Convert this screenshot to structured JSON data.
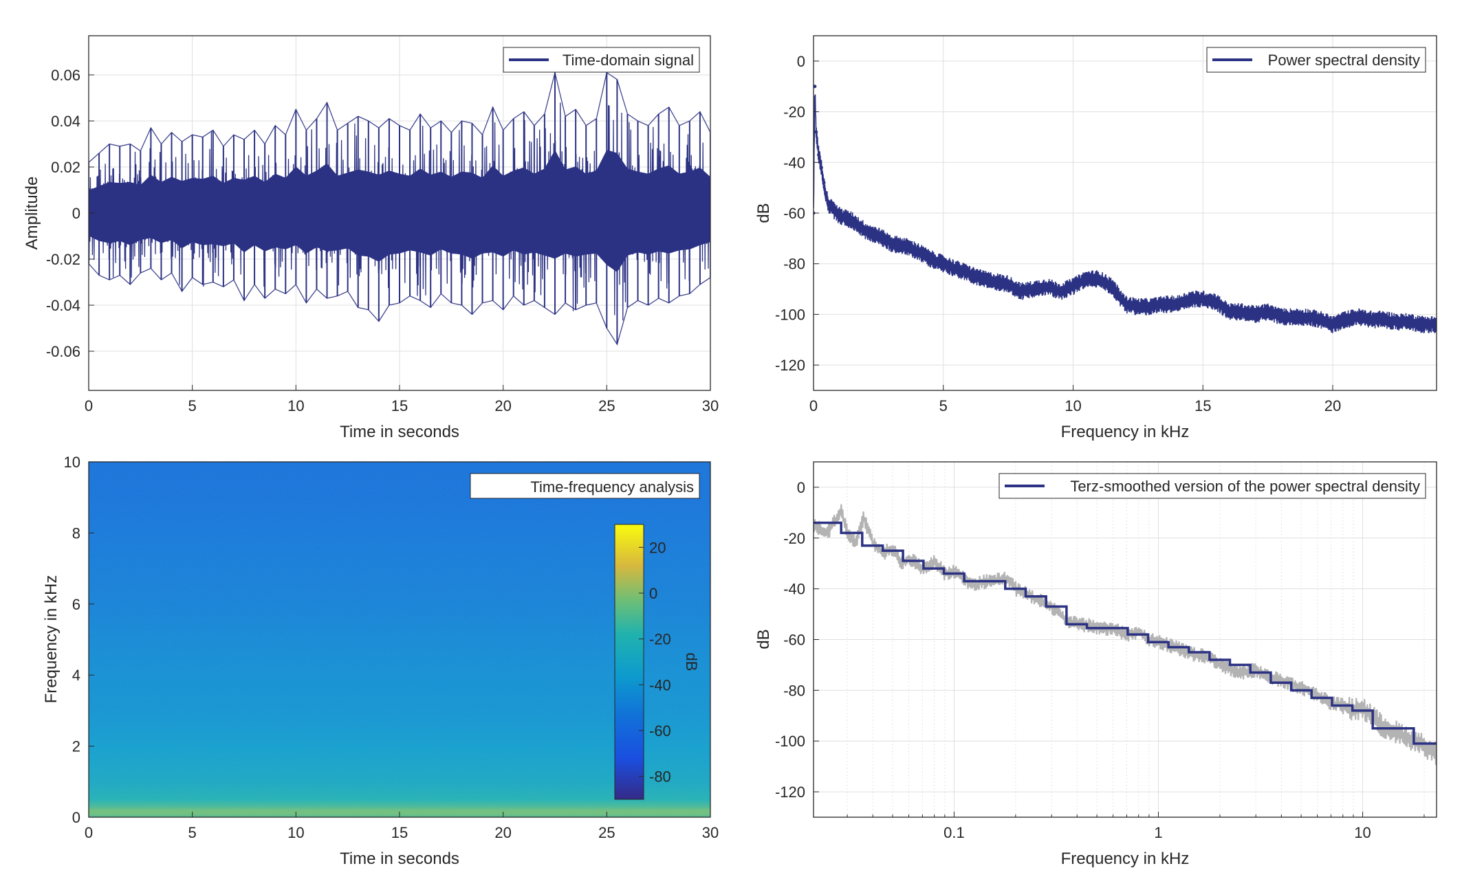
{
  "chart_data": [
    {
      "id": "time",
      "type": "line",
      "xlabel": "Time in seconds",
      "ylabel": "Amplitude",
      "xlim": [
        0,
        30
      ],
      "ylim": [
        -0.077,
        0.077
      ],
      "xticks": [
        0,
        5,
        10,
        15,
        20,
        25,
        30
      ],
      "yticks": [
        -0.06,
        -0.04,
        -0.02,
        0,
        0.02,
        0.04,
        0.06
      ],
      "ytick_labels": [
        "-0.06",
        "-0.04",
        "-0.02",
        "0",
        "0.02",
        "0.04",
        "0.06"
      ],
      "grid": true,
      "legend_position": "top-right",
      "series": [
        {
          "name": "Time-domain signal",
          "color": "#2c3283",
          "x": [
            0,
            0.5,
            1,
            1.5,
            2,
            2.5,
            3,
            3.5,
            4,
            4.5,
            5,
            5.5,
            6,
            6.5,
            7,
            7.5,
            8,
            8.5,
            9,
            9.5,
            10,
            10.5,
            11,
            11.5,
            12,
            12.5,
            13,
            13.5,
            14,
            14.5,
            15,
            15.5,
            16,
            16.5,
            17,
            17.5,
            18,
            18.5,
            19,
            19.5,
            20,
            20.5,
            21,
            21.5,
            22,
            22.5,
            23,
            23.5,
            24,
            24.5,
            25,
            25.5,
            26,
            26.5,
            27,
            27.5,
            28,
            28.5,
            29,
            29.5,
            30
          ],
          "max": [
            0.022,
            0.026,
            0.03,
            0.029,
            0.03,
            0.027,
            0.037,
            0.03,
            0.035,
            0.031,
            0.034,
            0.033,
            0.036,
            0.029,
            0.034,
            0.032,
            0.036,
            0.03,
            0.038,
            0.034,
            0.045,
            0.036,
            0.041,
            0.048,
            0.036,
            0.039,
            0.042,
            0.04,
            0.037,
            0.041,
            0.038,
            0.036,
            0.043,
            0.037,
            0.04,
            0.035,
            0.04,
            0.039,
            0.034,
            0.046,
            0.036,
            0.041,
            0.044,
            0.038,
            0.043,
            0.061,
            0.042,
            0.045,
            0.038,
            0.041,
            0.061,
            0.058,
            0.043,
            0.04,
            0.038,
            0.043,
            0.046,
            0.038,
            0.04,
            0.044,
            0.035
          ],
          "min": [
            -0.022,
            -0.027,
            -0.029,
            -0.027,
            -0.031,
            -0.026,
            -0.024,
            -0.029,
            -0.026,
            -0.034,
            -0.028,
            -0.031,
            -0.03,
            -0.032,
            -0.029,
            -0.038,
            -0.031,
            -0.037,
            -0.033,
            -0.035,
            -0.031,
            -0.039,
            -0.033,
            -0.037,
            -0.036,
            -0.034,
            -0.041,
            -0.042,
            -0.047,
            -0.04,
            -0.039,
            -0.036,
            -0.038,
            -0.041,
            -0.035,
            -0.039,
            -0.04,
            -0.044,
            -0.039,
            -0.038,
            -0.042,
            -0.036,
            -0.04,
            -0.038,
            -0.041,
            -0.044,
            -0.039,
            -0.042,
            -0.04,
            -0.039,
            -0.05,
            -0.057,
            -0.041,
            -0.038,
            -0.04,
            -0.037,
            -0.039,
            -0.036,
            -0.035,
            -0.031,
            -0.028
          ]
        }
      ]
    },
    {
      "id": "psd",
      "type": "line",
      "xlabel": "Frequency in kHz",
      "ylabel": "dB",
      "xlim": [
        0,
        24
      ],
      "ylim": [
        -130,
        10
      ],
      "xticks": [
        0,
        5,
        10,
        15,
        20
      ],
      "yticks": [
        -120,
        -100,
        -80,
        -60,
        -40,
        -20,
        0
      ],
      "grid": true,
      "legend_position": "top-right",
      "series": [
        {
          "name": "Power spectral density",
          "color": "#2c3283",
          "x": [
            0,
            0.05,
            0.1,
            0.2,
            0.3,
            0.4,
            0.5,
            0.6,
            0.7,
            0.8,
            1,
            1.5,
            2,
            2.5,
            3,
            3.5,
            4,
            4.5,
            5,
            5.5,
            6,
            6.5,
            7,
            7.5,
            8,
            8.5,
            9,
            9.5,
            10,
            10.5,
            11,
            11.5,
            12,
            12.5,
            13,
            13.5,
            14,
            14.5,
            15,
            15.5,
            16,
            16.5,
            17,
            17.5,
            18,
            18.5,
            19,
            19.5,
            20,
            20.5,
            21,
            21.5,
            22,
            22.5,
            23,
            23.5,
            24
          ],
          "y": [
            -60,
            -10,
            -28,
            -37,
            -42,
            -48,
            -54,
            -57,
            -58,
            -59,
            -61,
            -63,
            -67,
            -69,
            -72,
            -73,
            -75,
            -78,
            -80,
            -82,
            -84,
            -86,
            -87,
            -88,
            -91,
            -90,
            -89,
            -91,
            -89,
            -86,
            -86,
            -89,
            -96,
            -97,
            -97,
            -96,
            -96,
            -94,
            -94,
            -95,
            -99,
            -99,
            -100,
            -99,
            -101,
            -101,
            -101,
            -102,
            -104,
            -102,
            -101,
            -102,
            -102,
            -103,
            -103,
            -104,
            -104
          ],
          "spread": 3.5
        }
      ]
    },
    {
      "id": "spectrogram",
      "type": "heatmap",
      "xlabel": "Time in seconds",
      "ylabel": "Frequency in kHz",
      "xlim": [
        0,
        30
      ],
      "ylim": [
        0,
        10
      ],
      "xticks": [
        0,
        5,
        10,
        15,
        20,
        25,
        30
      ],
      "yticks": [
        0,
        2,
        4,
        6,
        8,
        10
      ],
      "legend": "Time-frequency analysis",
      "legend_position": "top-right",
      "colormap": "parula",
      "colorbar": {
        "label": "dB",
        "range": [
          -90,
          30
        ],
        "ticks": [
          -80,
          -60,
          -40,
          -20,
          0,
          20
        ]
      },
      "freq_profile_khz": [
        0,
        0.1,
        0.2,
        0.3,
        0.5,
        0.8,
        1,
        1.5,
        2,
        3,
        4,
        5,
        6,
        7,
        8,
        9,
        10
      ],
      "freq_profile_db": [
        -10,
        -3,
        -4,
        -11,
        -20,
        -25,
        -28,
        -32,
        -35,
        -40,
        -42,
        -45,
        -48,
        -50,
        -52,
        -54,
        -55
      ]
    },
    {
      "id": "terz",
      "type": "line",
      "xlabel": "Frequency in kHz",
      "ylabel": "dB",
      "xscale": "log",
      "xlim": [
        0.0205,
        23
      ],
      "ylim": [
        -130,
        10
      ],
      "xticks": [
        0.1,
        1,
        10
      ],
      "xtick_labels": [
        "0.1",
        "1",
        "10"
      ],
      "yticks": [
        -120,
        -100,
        -80,
        -60,
        -40,
        -20,
        0
      ],
      "grid": true,
      "legend_position": "top-right",
      "series": [
        {
          "name": "",
          "color": "#b3b3b3",
          "x": [
            0.0205,
            0.024,
            0.028,
            0.03,
            0.033,
            0.036,
            0.04,
            0.045,
            0.05,
            0.055,
            0.06,
            0.07,
            0.08,
            0.09,
            0.1,
            0.12,
            0.15,
            0.18,
            0.2,
            0.25,
            0.3,
            0.35,
            0.4,
            0.5,
            0.6,
            0.7,
            0.8,
            0.9,
            1,
            1.2,
            1.5,
            1.8,
            2,
            2.5,
            3,
            3.5,
            4,
            5,
            6,
            7,
            8,
            9,
            10,
            11,
            12,
            14,
            16,
            18,
            20,
            23
          ],
          "y": [
            -15,
            -18,
            -9,
            -18,
            -22,
            -12,
            -22,
            -26,
            -24,
            -30,
            -28,
            -32,
            -29,
            -34,
            -33,
            -38,
            -37,
            -36,
            -40,
            -44,
            -47,
            -52,
            -54,
            -55,
            -56,
            -58,
            -57,
            -60,
            -61,
            -63,
            -66,
            -67,
            -70,
            -73,
            -72,
            -75,
            -76,
            -79,
            -82,
            -85,
            -86,
            -88,
            -87,
            -90,
            -93,
            -96,
            -98,
            -100,
            -102,
            -105
          ],
          "spread": 3
        },
        {
          "name": "Terz-smoothed version of the power spectral density",
          "color": "#2c3283",
          "step_edges": [
            0.0205,
            0.028,
            0.0355,
            0.0447,
            0.0562,
            0.0708,
            0.0891,
            0.112,
            0.141,
            0.178,
            0.224,
            0.282,
            0.355,
            0.447,
            0.562,
            0.708,
            0.891,
            1.12,
            1.41,
            1.78,
            2.24,
            2.82,
            3.55,
            4.47,
            5.62,
            7.08,
            8.91,
            11.2,
            17.8,
            23
          ],
          "step_values": [
            -14,
            -18,
            -23,
            -25,
            -29,
            -32,
            -34,
            -37,
            -37,
            -40,
            -43,
            -47,
            -54,
            -55.5,
            -55.5,
            -58,
            -61,
            -63,
            -65,
            -68,
            -70,
            -73,
            -77,
            -80,
            -83,
            -86,
            -88,
            -95,
            -101
          ]
        }
      ]
    }
  ]
}
